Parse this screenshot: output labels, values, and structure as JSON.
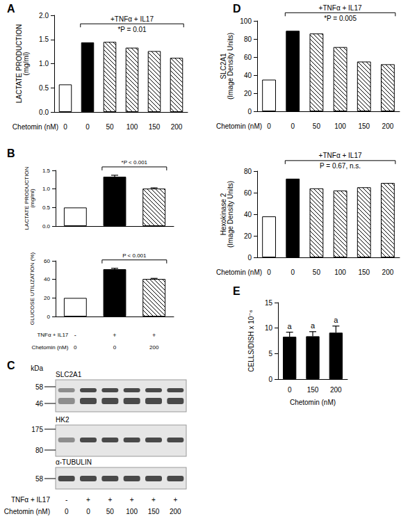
{
  "chart_data": [
    {
      "panel": "A",
      "type": "bar",
      "y_label": "LACTATE PRODUCTION\n(mg/ml)",
      "x_label": "Chetomin (nM)",
      "categories": [
        "0",
        "0",
        "50",
        "100",
        "150",
        "200"
      ],
      "values": [
        0.57,
        1.44,
        1.45,
        1.33,
        1.26,
        1.12
      ],
      "colors": [
        "#ffffff",
        "#000000",
        "#ffffff",
        "#ffffff",
        "#ffffff",
        "#ffffff"
      ],
      "ylim": [
        0,
        2
      ],
      "yticks": [
        {
          "value": 0,
          "label": "0.0"
        },
        0.5,
        {
          "value": 1,
          "label": "1.0"
        },
        1.5,
        {
          "value": 2,
          "label": "2.0"
        }
      ],
      "bracket": {
        "from": 1,
        "to": 5,
        "above": "+TNFα + IL17",
        "below": "*P = 0.01"
      }
    },
    {
      "panel": "B",
      "type": "bar",
      "y_label": "LACTATE PRODUCTION\n(mg/ml)",
      "categories": [
        null,
        null,
        null
      ],
      "values": [
        0.5,
        1.33,
        1.01
      ],
      "errors": [
        null,
        0.04,
        0.02
      ],
      "colors": [
        "#ffffff",
        "#000000",
        "#ffffff"
      ],
      "ylim": [
        0,
        1.5
      ],
      "yticks": [
        {
          "value": 0,
          "label": "0.0"
        },
        0.5,
        {
          "value": 1,
          "label": "1.0"
        },
        1.5
      ],
      "tick_labels": "y",
      "bracket": {
        "from": 1,
        "to": 2,
        "above": "*P < 0.001"
      }
    },
    {
      "type": "bar",
      "y_label": "GLUCOSE UTILIZATION (%)",
      "x_label": "Chetomin (nM)",
      "categories": [
        "0",
        "0",
        "200"
      ],
      "values": [
        20,
        51,
        40.5
      ],
      "errors": [
        null,
        1,
        0.6
      ],
      "colors": [
        "#ffffff",
        "#000000",
        "#ffffff"
      ],
      "ylim": [
        0,
        60
      ],
      "yticks": [
        0,
        20,
        40,
        60
      ],
      "treatment_row": {
        "label": "TNFα + IL17",
        "values": [
          "-",
          "+",
          "+"
        ]
      },
      "bracket": {
        "from": 1,
        "to": 2,
        "above": "P < 0.001"
      }
    },
    {
      "panel": "D",
      "type": "bar",
      "y_label": "SLC2A1\n(Image Density Units)",
      "x_label": "Chetomin (nM)",
      "categories": [
        "0",
        "0",
        "50",
        "100",
        "150",
        "200"
      ],
      "values": [
        35,
        89,
        86,
        71,
        55,
        52
      ],
      "colors": [
        "#ffffff",
        "#000000",
        "#ffffff",
        "#ffffff",
        "#ffffff",
        "#ffffff"
      ],
      "ylim": [
        0,
        100
      ],
      "yticks": [
        0,
        20,
        40,
        60,
        80,
        100
      ],
      "bracket": {
        "from": 1,
        "to": 5,
        "above": "+TNFα + IL17",
        "below": "*P = 0.005"
      }
    },
    {
      "type": "bar",
      "y_label": "Hexokinase 2\n(Image Density Units)",
      "x_label": "Chetomin (nM)",
      "categories": [
        "0",
        "0",
        "50",
        "100",
        "150",
        "200"
      ],
      "values": [
        38,
        73,
        64,
        62,
        65,
        69
      ],
      "colors": [
        "#ffffff",
        "#000000",
        "#ffffff",
        "#ffffff",
        "#ffffff",
        "#ffffff"
      ],
      "ylim": [
        0,
        80
      ],
      "yticks": [
        0,
        20,
        40,
        60,
        80
      ],
      "bracket": {
        "from": 1,
        "to": 5,
        "above": "+TNFα + IL17",
        "below": "P = 0.67, n.s."
      }
    },
    {
      "panel": "E",
      "type": "bar",
      "y_label": "CELLS/DISH x 10⁻⁶",
      "x_label": "Chetomin (nM)",
      "categories": [
        "0",
        "150",
        "200"
      ],
      "values": [
        8.3,
        8.4,
        9.1
      ],
      "errors": [
        0.9,
        0.9,
        1.3
      ],
      "point_labels": [
        "a",
        "a",
        "a"
      ],
      "colors": [
        "#000000",
        "#000000",
        "#000000"
      ],
      "ylim": [
        0,
        15
      ],
      "yticks": [
        0,
        5,
        10,
        15
      ]
    }
  ],
  "blot": {
    "panel": "C",
    "unit": "kDa",
    "strips": [
      {
        "name": "SLC2A1",
        "markers": [
          58,
          46
        ]
      },
      {
        "name": "HK2",
        "markers": [
          175,
          80
        ]
      },
      {
        "name": "α-TUBULIN",
        "markers": [
          58
        ]
      }
    ],
    "lane_rows": [
      {
        "label": "TNFα + IL17",
        "values": [
          "-",
          "+",
          "+",
          "+",
          "+",
          "+"
        ]
      },
      {
        "label": "Chetomin (nM)",
        "values": [
          "0",
          "0",
          "50",
          "100",
          "150",
          "200"
        ]
      }
    ]
  }
}
